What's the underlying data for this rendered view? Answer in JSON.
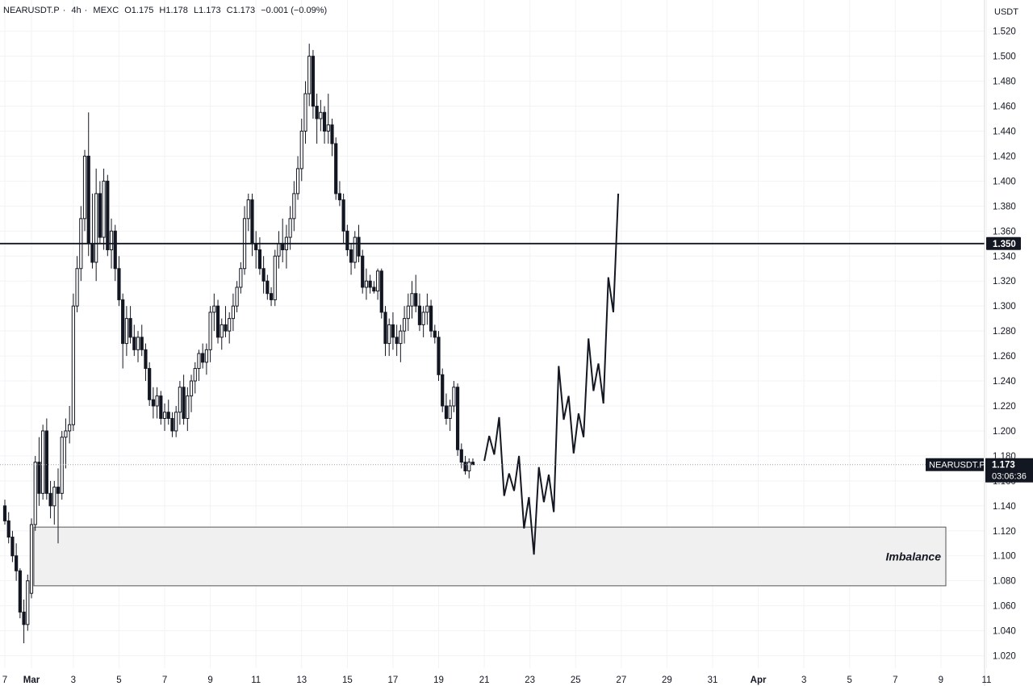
{
  "header": {
    "symbol": "NEARUSDT.P",
    "interval": "4h",
    "exchange": "MEXC",
    "open": "O1.175",
    "high": "H1.178",
    "low": "L1.173",
    "close": "C1.173",
    "change": "−0.001 (−0.09%)",
    "separator": "·"
  },
  "axis": {
    "unit": "USDT"
  },
  "price_label": {
    "symbol": "NEARUSDT.P",
    "price": "1.173",
    "countdown": "03:06:36"
  },
  "level_label": "1.350",
  "annotation": {
    "imbalance": "Imbalance"
  },
  "colors": {
    "candle": "#131722",
    "zone_fill": "#f0f0f0",
    "zone_stroke": "#555555",
    "grid": "#f2f3f5"
  },
  "chart_data": {
    "type": "candlestick",
    "ylim": [
      1.01,
      1.545
    ],
    "y_ticks": [
      "1.020",
      "1.040",
      "1.060",
      "1.080",
      "1.100",
      "1.120",
      "1.140",
      "1.160",
      "1.180",
      "1.200",
      "1.220",
      "1.240",
      "1.260",
      "1.280",
      "1.300",
      "1.320",
      "1.340",
      "1.360",
      "1.380",
      "1.400",
      "1.420",
      "1.440",
      "1.460",
      "1.480",
      "1.500",
      "1.520"
    ],
    "x_ticks": [
      "7",
      "Mar",
      "3",
      "5",
      "7",
      "9",
      "11",
      "13",
      "15",
      "17",
      "19",
      "21",
      "23",
      "25",
      "27",
      "29",
      "31",
      "Apr",
      "3",
      "5",
      "7",
      "9",
      "11"
    ],
    "x_tick_index": [
      0,
      7,
      18,
      30,
      42,
      54,
      66,
      78,
      90,
      102,
      114,
      126,
      138,
      150,
      162,
      174,
      186,
      198,
      210,
      222,
      234,
      246,
      258
    ],
    "candles": [
      [
        1.14,
        1.145,
        1.125,
        1.128
      ],
      [
        1.128,
        1.135,
        1.11,
        1.115
      ],
      [
        1.115,
        1.12,
        1.095,
        1.1
      ],
      [
        1.1,
        1.11,
        1.08,
        1.088
      ],
      [
        1.088,
        1.09,
        1.05,
        1.055
      ],
      [
        1.055,
        1.065,
        1.03,
        1.045
      ],
      [
        1.045,
        1.085,
        1.04,
        1.08
      ],
      [
        1.07,
        1.13,
        1.066,
        1.125
      ],
      [
        1.125,
        1.18,
        1.12,
        1.175
      ],
      [
        1.175,
        1.195,
        1.14,
        1.15
      ],
      [
        1.15,
        1.205,
        1.145,
        1.2
      ],
      [
        1.2,
        1.21,
        1.145,
        1.15
      ],
      [
        1.15,
        1.16,
        1.13,
        1.14
      ],
      [
        1.14,
        1.16,
        1.125,
        1.155
      ],
      [
        1.155,
        1.17,
        1.11,
        1.15
      ],
      [
        1.15,
        1.2,
        1.145,
        1.195
      ],
      [
        1.195,
        1.21,
        1.17,
        1.2
      ],
      [
        1.2,
        1.22,
        1.19,
        1.205
      ],
      [
        1.205,
        1.31,
        1.2,
        1.3
      ],
      [
        1.3,
        1.34,
        1.295,
        1.33
      ],
      [
        1.33,
        1.38,
        1.32,
        1.37
      ],
      [
        1.37,
        1.425,
        1.36,
        1.42
      ],
      [
        1.42,
        1.455,
        1.34,
        1.35
      ],
      [
        1.35,
        1.39,
        1.33,
        1.335
      ],
      [
        1.335,
        1.41,
        1.32,
        1.39
      ],
      [
        1.39,
        1.4,
        1.35,
        1.355
      ],
      [
        1.355,
        1.41,
        1.345,
        1.4
      ],
      [
        1.4,
        1.405,
        1.34,
        1.345
      ],
      [
        1.345,
        1.37,
        1.33,
        1.36
      ],
      [
        1.36,
        1.365,
        1.32,
        1.33
      ],
      [
        1.33,
        1.34,
        1.3,
        1.305
      ],
      [
        1.305,
        1.31,
        1.25,
        1.27
      ],
      [
        1.27,
        1.3,
        1.26,
        1.29
      ],
      [
        1.29,
        1.3,
        1.27,
        1.275
      ],
      [
        1.275,
        1.285,
        1.26,
        1.265
      ],
      [
        1.265,
        1.28,
        1.255,
        1.275
      ],
      [
        1.275,
        1.285,
        1.26,
        1.265
      ],
      [
        1.265,
        1.27,
        1.24,
        1.25
      ],
      [
        1.25,
        1.255,
        1.22,
        1.225
      ],
      [
        1.225,
        1.235,
        1.21,
        1.22
      ],
      [
        1.22,
        1.235,
        1.21,
        1.228
      ],
      [
        1.228,
        1.232,
        1.205,
        1.21
      ],
      [
        1.21,
        1.222,
        1.2,
        1.215
      ],
      [
        1.215,
        1.225,
        1.205,
        1.21
      ],
      [
        1.21,
        1.215,
        1.195,
        1.2
      ],
      [
        1.2,
        1.22,
        1.195,
        1.215
      ],
      [
        1.215,
        1.24,
        1.205,
        1.235
      ],
      [
        1.235,
        1.245,
        1.205,
        1.21
      ],
      [
        1.21,
        1.235,
        1.2,
        1.228
      ],
      [
        1.228,
        1.245,
        1.215,
        1.24
      ],
      [
        1.24,
        1.255,
        1.23,
        1.25
      ],
      [
        1.25,
        1.265,
        1.24,
        1.262
      ],
      [
        1.262,
        1.27,
        1.25,
        1.255
      ],
      [
        1.255,
        1.27,
        1.245,
        1.265
      ],
      [
        1.265,
        1.3,
        1.255,
        1.295
      ],
      [
        1.295,
        1.31,
        1.28,
        1.3
      ],
      [
        1.3,
        1.305,
        1.27,
        1.275
      ],
      [
        1.275,
        1.29,
        1.265,
        1.285
      ],
      [
        1.285,
        1.3,
        1.275,
        1.28
      ],
      [
        1.28,
        1.295,
        1.27,
        1.29
      ],
      [
        1.29,
        1.31,
        1.28,
        1.3
      ],
      [
        1.3,
        1.32,
        1.295,
        1.315
      ],
      [
        1.315,
        1.335,
        1.31,
        1.33
      ],
      [
        1.33,
        1.38,
        1.325,
        1.37
      ],
      [
        1.37,
        1.39,
        1.36,
        1.385
      ],
      [
        1.385,
        1.39,
        1.34,
        1.35
      ],
      [
        1.35,
        1.36,
        1.33,
        1.345
      ],
      [
        1.345,
        1.355,
        1.325,
        1.33
      ],
      [
        1.33,
        1.34,
        1.31,
        1.32
      ],
      [
        1.32,
        1.325,
        1.305,
        1.31
      ],
      [
        1.31,
        1.315,
        1.3,
        1.305
      ],
      [
        1.305,
        1.345,
        1.3,
        1.34
      ],
      [
        1.34,
        1.36,
        1.33,
        1.35
      ],
      [
        1.35,
        1.37,
        1.335,
        1.345
      ],
      [
        1.345,
        1.365,
        1.33,
        1.355
      ],
      [
        1.355,
        1.38,
        1.345,
        1.37
      ],
      [
        1.37,
        1.4,
        1.36,
        1.39
      ],
      [
        1.39,
        1.42,
        1.385,
        1.41
      ],
      [
        1.41,
        1.45,
        1.4,
        1.44
      ],
      [
        1.44,
        1.48,
        1.43,
        1.47
      ],
      [
        1.47,
        1.51,
        1.46,
        1.5
      ],
      [
        1.5,
        1.505,
        1.45,
        1.46
      ],
      [
        1.46,
        1.47,
        1.43,
        1.45
      ],
      [
        1.45,
        1.465,
        1.44,
        1.455
      ],
      [
        1.455,
        1.46,
        1.43,
        1.44
      ],
      [
        1.44,
        1.47,
        1.43,
        1.445
      ],
      [
        1.445,
        1.45,
        1.42,
        1.43
      ],
      [
        1.43,
        1.435,
        1.385,
        1.39
      ],
      [
        1.39,
        1.4,
        1.38,
        1.385
      ],
      [
        1.385,
        1.39,
        1.35,
        1.36
      ],
      [
        1.36,
        1.365,
        1.34,
        1.345
      ],
      [
        1.345,
        1.35,
        1.325,
        1.335
      ],
      [
        1.335,
        1.36,
        1.33,
        1.355
      ],
      [
        1.355,
        1.365,
        1.335,
        1.34
      ],
      [
        1.34,
        1.345,
        1.31,
        1.315
      ],
      [
        1.315,
        1.33,
        1.305,
        1.32
      ],
      [
        1.32,
        1.325,
        1.31,
        1.315
      ],
      [
        1.315,
        1.32,
        1.31,
        1.312
      ],
      [
        1.312,
        1.33,
        1.305,
        1.328
      ],
      [
        1.328,
        1.33,
        1.29,
        1.295
      ],
      [
        1.295,
        1.3,
        1.26,
        1.27
      ],
      [
        1.27,
        1.29,
        1.26,
        1.285
      ],
      [
        1.285,
        1.295,
        1.265,
        1.275
      ],
      [
        1.275,
        1.285,
        1.26,
        1.27
      ],
      [
        1.27,
        1.285,
        1.255,
        1.28
      ],
      [
        1.28,
        1.3,
        1.27,
        1.29
      ],
      [
        1.29,
        1.31,
        1.28,
        1.3
      ],
      [
        1.3,
        1.32,
        1.29,
        1.31
      ],
      [
        1.31,
        1.325,
        1.295,
        1.3
      ],
      [
        1.3,
        1.31,
        1.28,
        1.285
      ],
      [
        1.285,
        1.3,
        1.275,
        1.295
      ],
      [
        1.295,
        1.31,
        1.285,
        1.3
      ],
      [
        1.3,
        1.305,
        1.275,
        1.28
      ],
      [
        1.28,
        1.285,
        1.27,
        1.275
      ],
      [
        1.275,
        1.28,
        1.24,
        1.245
      ],
      [
        1.245,
        1.25,
        1.215,
        1.22
      ],
      [
        1.22,
        1.23,
        1.205,
        1.21
      ],
      [
        1.21,
        1.225,
        1.2,
        1.22
      ],
      [
        1.22,
        1.24,
        1.215,
        1.235
      ],
      [
        1.235,
        1.238,
        1.18,
        1.185
      ],
      [
        1.185,
        1.19,
        1.17,
        1.175
      ],
      [
        1.175,
        1.18,
        1.165,
        1.168
      ],
      [
        1.168,
        1.178,
        1.162,
        1.175
      ],
      [
        1.175,
        1.178,
        1.173,
        1.173
      ]
    ],
    "projection": [
      [
        1.176,
        1.196,
        1.181,
        1.211,
        1.148,
        1.166,
        1.152,
        1.18,
        1.122,
        1.147,
        1.101,
        1.171,
        1.143,
        1.165,
        1.135,
        1.252,
        1.209,
        1.228,
        1.182,
        1.214,
        1.195,
        1.274,
        1.232,
        1.254,
        1.222,
        1.323,
        1.295,
        1.39
      ]
    ],
    "level": 1.35,
    "last_price": 1.173,
    "zone": {
      "label": "Imbalance",
      "y_low": 1.076,
      "y_high": 1.123
    }
  }
}
